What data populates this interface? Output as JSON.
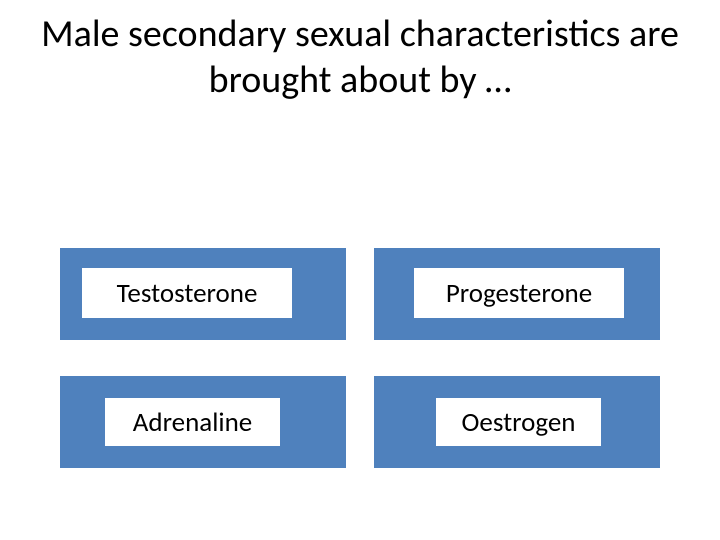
{
  "question": {
    "text": "Male secondary sexual characteristics are brought about by …",
    "fontsize": 38,
    "color": "#000000"
  },
  "options": [
    {
      "label": "Testosterone"
    },
    {
      "label": "Progesterone"
    },
    {
      "label": "Adrenaline"
    },
    {
      "label": "Oestrogen"
    }
  ],
  "style": {
    "tile_background": "#4f81bd",
    "answer_background": "#ffffff",
    "answer_fontsize": 27,
    "answer_color": "#000000",
    "page_background": "#ffffff"
  }
}
